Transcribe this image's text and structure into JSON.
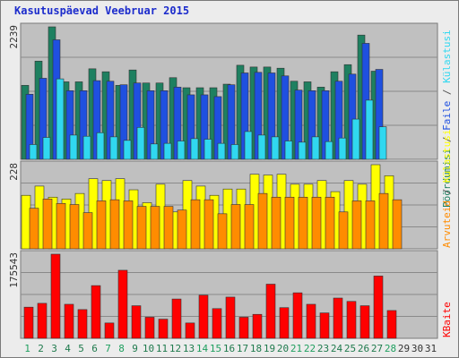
{
  "title": "Kasutuspäevad Veebruar 2015",
  "colors": {
    "background": "#ececec",
    "panel": "#c0c0c0",
    "border": "#7a7a7a",
    "grid": "#8a8a8a",
    "title": "#1c2ccc",
    "weekday_label": "#1f7a4d",
    "weekend_label": "#1f9f5f",
    "missing_label": "#333333",
    "separator": "#555555"
  },
  "chart_data": [
    {
      "type": "bar",
      "panel": "top",
      "ylim": [
        0,
        2239
      ],
      "y_tick_label": "2239",
      "categories": [
        "1",
        "2",
        "3",
        "4",
        "5",
        "6",
        "7",
        "8",
        "9",
        "10",
        "11",
        "12",
        "13",
        "14",
        "15",
        "16",
        "17",
        "18",
        "19",
        "20",
        "21",
        "22",
        "23",
        "24",
        "25",
        "26",
        "27",
        "28",
        "29",
        "30",
        "31"
      ],
      "series": [
        {
          "name": "Pöördumisi",
          "color": "#1e8060",
          "values": [
            1250,
            1660,
            2239,
            1310,
            1310,
            1530,
            1480,
            1250,
            1510,
            1290,
            1290,
            1380,
            1210,
            1210,
            1210,
            1270,
            1590,
            1560,
            1560,
            1540,
            1320,
            1310,
            1220,
            1480,
            1600,
            2100,
            1490,
            null,
            null,
            null,
            null
          ]
        },
        {
          "name": "Faile",
          "color": "#1f50e0",
          "values": [
            1100,
            1370,
            2020,
            1160,
            1160,
            1330,
            1320,
            1260,
            1290,
            1160,
            1160,
            1220,
            1090,
            1090,
            1060,
            1260,
            1460,
            1470,
            1460,
            1410,
            1170,
            1160,
            1160,
            1320,
            1440,
            1960,
            1520,
            null,
            null,
            null,
            null
          ]
        },
        {
          "name": "Külastusi",
          "color": "#30d8f0",
          "values": [
            250,
            370,
            1360,
            410,
            390,
            450,
            380,
            320,
            540,
            260,
            270,
            310,
            350,
            340,
            270,
            250,
            470,
            410,
            380,
            310,
            290,
            380,
            300,
            360,
            680,
            1000,
            550,
            null,
            null,
            null,
            null
          ]
        }
      ]
    },
    {
      "type": "bar",
      "panel": "middle",
      "ylim": [
        0,
        228
      ],
      "y_tick_label": "228",
      "categories": [
        "1",
        "2",
        "3",
        "4",
        "5",
        "6",
        "7",
        "8",
        "9",
        "10",
        "11",
        "12",
        "13",
        "14",
        "15",
        "16",
        "17",
        "18",
        "19",
        "20",
        "21",
        "22",
        "23",
        "24",
        "25",
        "26",
        "27",
        "28",
        "29",
        "30",
        "31"
      ],
      "series": [
        {
          "name": "Külastusi",
          "color": "#ffff00",
          "values": [
            145,
            170,
            140,
            135,
            150,
            190,
            185,
            190,
            160,
            125,
            175,
            100,
            185,
            170,
            145,
            162,
            162,
            202,
            200,
            202,
            175,
            175,
            185,
            155,
            185,
            175,
            228,
            198,
            null,
            null,
            null
          ]
        },
        {
          "name": "Arvuteid",
          "color": "#ff8c00",
          "values": [
            110,
            135,
            123,
            120,
            98,
            130,
            133,
            130,
            115,
            115,
            115,
            105,
            133,
            133,
            95,
            120,
            120,
            150,
            140,
            140,
            140,
            140,
            140,
            100,
            130,
            130,
            150,
            133,
            null,
            null,
            null
          ]
        }
      ]
    },
    {
      "type": "bar",
      "panel": "bottom",
      "ylim": [
        0,
        175543
      ],
      "y_tick_label": "175543",
      "categories": [
        "1",
        "2",
        "3",
        "4",
        "5",
        "6",
        "7",
        "8",
        "9",
        "10",
        "11",
        "12",
        "13",
        "14",
        "15",
        "16",
        "17",
        "18",
        "19",
        "20",
        "21",
        "22",
        "23",
        "24",
        "25",
        "26",
        "27",
        "28",
        "29",
        "30",
        "31"
      ],
      "series": [
        {
          "name": "KBaite",
          "color": "#ff0000",
          "values": [
            65000,
            73000,
            175543,
            71000,
            60000,
            110000,
            32000,
            142000,
            68000,
            44000,
            40000,
            82000,
            32000,
            90000,
            62000,
            86000,
            44000,
            50000,
            113000,
            64000,
            95000,
            71000,
            53000,
            84000,
            77000,
            68000,
            130000,
            58000,
            null,
            null,
            null
          ]
        }
      ]
    }
  ],
  "x_tick_labels": [
    "1",
    "2",
    "3",
    "4",
    "5",
    "6",
    "7",
    "8",
    "9",
    "10",
    "11",
    "12",
    "13",
    "14",
    "15",
    "16",
    "17",
    "18",
    "19",
    "20",
    "21",
    "22",
    "23",
    "24",
    "25",
    "26",
    "27",
    "28",
    "29",
    "30",
    "31"
  ],
  "weekend_days": [
    "1",
    "7",
    "8",
    "14",
    "15",
    "21",
    "22",
    "28"
  ],
  "missing_days": [
    "29",
    "30",
    "31"
  ],
  "legend": {
    "right_top": [
      {
        "text": "Pöördumisi",
        "color": "#1e8060"
      },
      {
        "text": " / ",
        "color": "#555555"
      },
      {
        "text": "Faile",
        "color": "#1f50e0"
      },
      {
        "text": " / ",
        "color": "#555555"
      },
      {
        "text": "Külastusi",
        "color": "#30d8f0"
      }
    ],
    "right_middle": [
      {
        "text": "Arvuteid",
        "color": "#ff8c00"
      },
      {
        "text": " / ",
        "color": "#555555"
      },
      {
        "text": "Külastusi",
        "color": "#ffff00"
      }
    ],
    "right_bottom": [
      {
        "text": "KBaite",
        "color": "#ff0000"
      }
    ]
  }
}
